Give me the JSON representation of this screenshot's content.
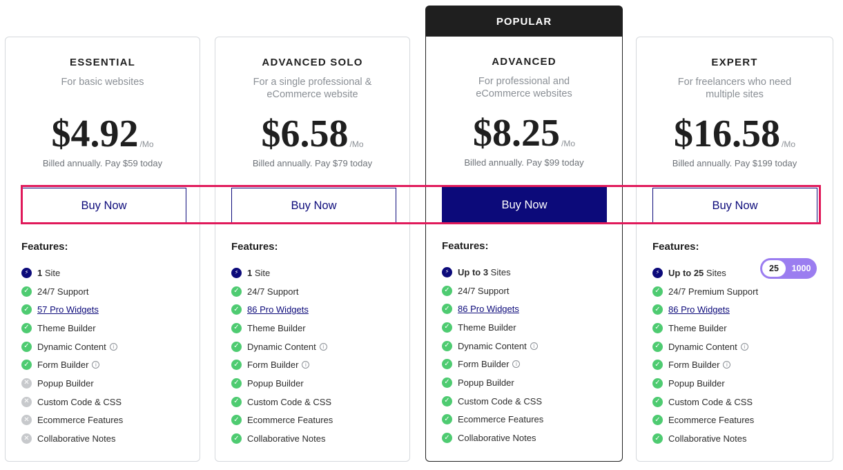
{
  "popular_label": "POPULAR",
  "colors": {
    "accent": "#0c0a7a",
    "check": "#4ecb71",
    "disabled": "#c7c9cc",
    "highlight": "#e0195a",
    "toggle": "#9b7df0"
  },
  "plans": [
    {
      "name": "ESSENTIAL",
      "desc": "For basic websites",
      "price": "$4.92",
      "per": "/Mo",
      "billed": "Billed annually. Pay $59 today",
      "button": "Buy Now",
      "features_title": "Features:",
      "features": [
        {
          "icon": "bolt",
          "bold": "1",
          "text": " Site"
        },
        {
          "icon": "check",
          "text": "24/7 Support"
        },
        {
          "icon": "check",
          "text": "57 Pro Widgets",
          "link": true
        },
        {
          "icon": "check",
          "text": "Theme Builder"
        },
        {
          "icon": "check",
          "text": "Dynamic Content",
          "info": true
        },
        {
          "icon": "check",
          "text": "Form Builder",
          "info": true
        },
        {
          "icon": "x",
          "text": "Popup Builder"
        },
        {
          "icon": "x",
          "text": "Custom Code & CSS"
        },
        {
          "icon": "x",
          "text": "Ecommerce Features"
        },
        {
          "icon": "x",
          "text": "Collaborative Notes"
        }
      ]
    },
    {
      "name": "ADVANCED SOLO",
      "desc": "For a single professional & eCommerce website",
      "price": "$6.58",
      "per": "/Mo",
      "billed": "Billed annually. Pay $79 today",
      "button": "Buy Now",
      "features_title": "Features:",
      "features": [
        {
          "icon": "bolt",
          "bold": "1",
          "text": " Site"
        },
        {
          "icon": "check",
          "text": "24/7 Support"
        },
        {
          "icon": "check",
          "text": "86 Pro Widgets",
          "link": true
        },
        {
          "icon": "check",
          "text": "Theme Builder"
        },
        {
          "icon": "check",
          "text": "Dynamic Content",
          "info": true
        },
        {
          "icon": "check",
          "text": "Form Builder",
          "info": true
        },
        {
          "icon": "check",
          "text": "Popup Builder"
        },
        {
          "icon": "check",
          "text": "Custom Code & CSS"
        },
        {
          "icon": "check",
          "text": "Ecommerce Features"
        },
        {
          "icon": "check",
          "text": "Collaborative Notes"
        }
      ]
    },
    {
      "name": "ADVANCED",
      "desc": "For professional and eCommerce websites",
      "price": "$8.25",
      "per": "/Mo",
      "billed": "Billed annually. Pay $99 today",
      "button": "Buy Now",
      "features_title": "Features:",
      "features": [
        {
          "icon": "bolt",
          "bold": "Up to 3",
          "text": " Sites"
        },
        {
          "icon": "check",
          "text": "24/7 Support"
        },
        {
          "icon": "check",
          "text": "86 Pro Widgets",
          "link": true
        },
        {
          "icon": "check",
          "text": "Theme Builder"
        },
        {
          "icon": "check",
          "text": "Dynamic Content",
          "info": true
        },
        {
          "icon": "check",
          "text": "Form Builder",
          "info": true
        },
        {
          "icon": "check",
          "text": "Popup Builder"
        },
        {
          "icon": "check",
          "text": "Custom Code & CSS"
        },
        {
          "icon": "check",
          "text": "Ecommerce Features"
        },
        {
          "icon": "check",
          "text": "Collaborative Notes"
        }
      ]
    },
    {
      "name": "EXPERT",
      "desc": "For freelancers who need multiple sites",
      "price": "$16.58",
      "per": "/Mo",
      "billed": "Billed annually. Pay $199 today",
      "button": "Buy Now",
      "features_title": "Features:",
      "features": [
        {
          "icon": "bolt",
          "bold": "Up to 25",
          "text": " Sites"
        },
        {
          "icon": "check",
          "text": "24/7 Premium Support"
        },
        {
          "icon": "check",
          "text": "86 Pro Widgets",
          "link": true
        },
        {
          "icon": "check",
          "text": "Theme Builder"
        },
        {
          "icon": "check",
          "text": "Dynamic Content",
          "info": true
        },
        {
          "icon": "check",
          "text": "Form Builder",
          "info": true
        },
        {
          "icon": "check",
          "text": "Popup Builder"
        },
        {
          "icon": "check",
          "text": "Custom Code & CSS"
        },
        {
          "icon": "check",
          "text": "Ecommerce Features"
        },
        {
          "icon": "check",
          "text": "Collaborative Notes"
        }
      ]
    }
  ],
  "sites_toggle": {
    "selected": "25",
    "other": "1000"
  },
  "info_glyph": "i"
}
